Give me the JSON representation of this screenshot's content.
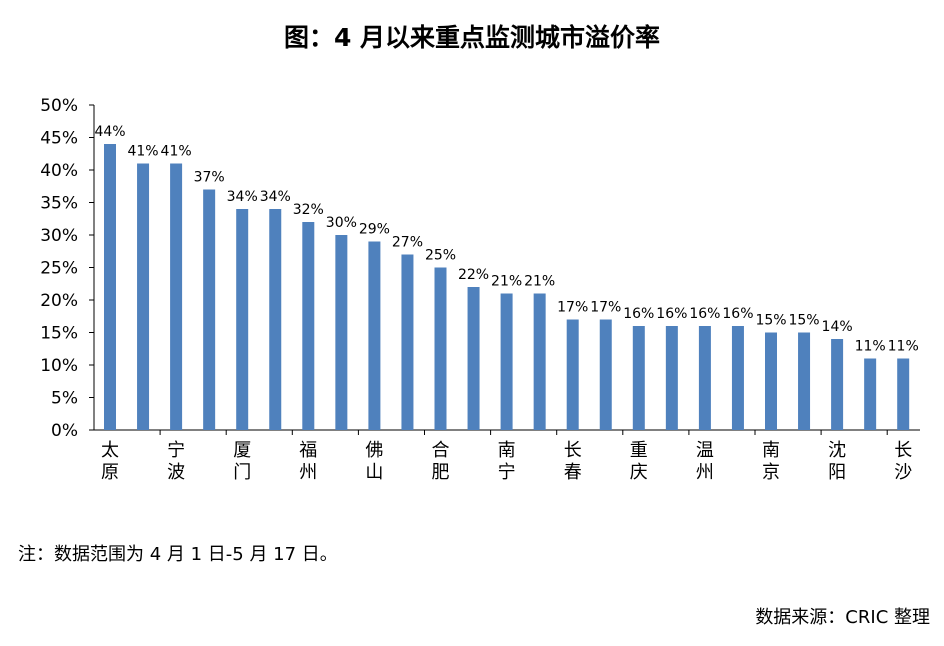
{
  "chart_data": {
    "type": "bar",
    "title": "图：4 月以来重点监测城市溢价率",
    "categories": [
      "太原",
      "",
      "宁波",
      "",
      "厦门",
      "",
      "福州",
      "",
      "佛山",
      "",
      "合肥",
      "",
      "南宁",
      "",
      "长春",
      "",
      "重庆",
      "",
      "温州",
      "",
      "南京",
      "",
      "沈阳",
      "",
      "长沙"
    ],
    "values": [
      44,
      41,
      41,
      37,
      34,
      34,
      32,
      30,
      29,
      27,
      25,
      22,
      21,
      21,
      17,
      17,
      16,
      16,
      16,
      16,
      15,
      15,
      14,
      11,
      11
    ],
    "data_labels": [
      "44%",
      "41%",
      "41%",
      "37%",
      "34%",
      "34%",
      "32%",
      "30%",
      "29%",
      "27%",
      "25%",
      "22%",
      "21%",
      "21%",
      "17%",
      "17%",
      "16%",
      "16%",
      "16%",
      "16%",
      "15%",
      "15%",
      "14%",
      "11%",
      "11%"
    ],
    "y_ticks": [
      "0%",
      "5%",
      "10%",
      "15%",
      "20%",
      "25%",
      "30%",
      "35%",
      "40%",
      "45%",
      "50%"
    ],
    "ylim": [
      0,
      50
    ],
    "xlabel": "",
    "ylabel": "",
    "bar_color": "#4f81bd",
    "grid": false
  },
  "note": "注：数据范围为 4 月 1 日-5 月 17 日。",
  "source": "数据来源：CRIC 整理"
}
